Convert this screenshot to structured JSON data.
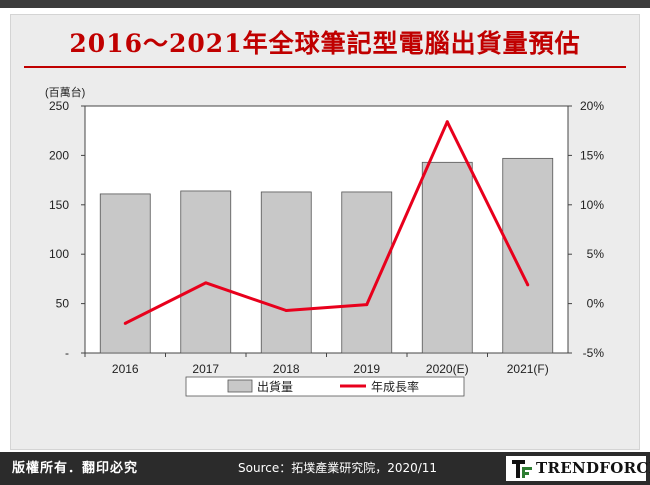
{
  "header": {
    "title": "2016～2021年全球筆記型電腦出貨量預估"
  },
  "footer": {
    "copyright": "版權所有．翻印必究",
    "source": "Source：拓墣產業研究院，2020/11",
    "brand": "TRENDFORCE"
  },
  "colors": {
    "bar": "#c8c8c8",
    "bar_stroke": "#555555",
    "line": "#e8001c",
    "title": "#c00000"
  },
  "chart_data": {
    "type": "bar",
    "title": "2016～2021年全球筆記型電腦出貨量預估",
    "ylabel": "(百萬台)",
    "categories": [
      "2016",
      "2017",
      "2018",
      "2019",
      "2020(E)",
      "2021(F)"
    ],
    "series": [
      {
        "name": "出貨量",
        "type": "bar",
        "axis": "left",
        "values": [
          161,
          164,
          163,
          163,
          193,
          197
        ]
      },
      {
        "name": "年成長率",
        "type": "line",
        "axis": "right",
        "values": [
          -2.0,
          2.1,
          -0.7,
          -0.1,
          18.4,
          1.9
        ]
      }
    ],
    "ylim": [
      0,
      250
    ],
    "yticks": [
      "-",
      "50",
      "100",
      "150",
      "200",
      "250"
    ],
    "y2lim": [
      -5,
      20
    ],
    "y2ticks": [
      "-5%",
      "0%",
      "5%",
      "10%",
      "15%",
      "20%"
    ],
    "legend": {
      "position": "bottom",
      "labels": [
        "出貨量",
        "年成長率"
      ]
    },
    "grid": false
  }
}
